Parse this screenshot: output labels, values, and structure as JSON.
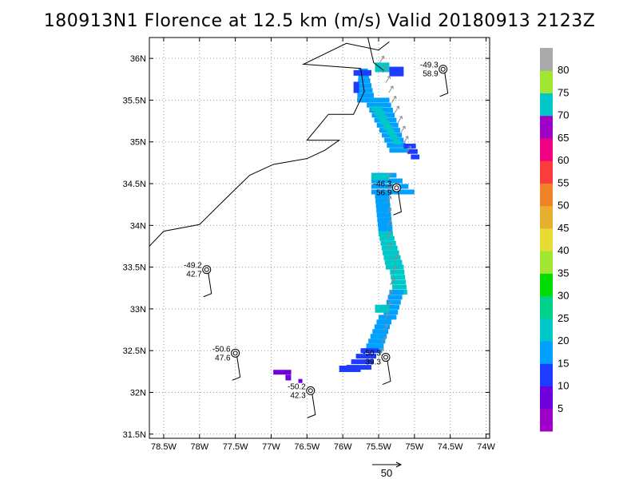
{
  "title": "180913N1 Florence at 12.5 km (m/s) Valid 20180913 2123Z",
  "chart_data": {
    "type": "heatmap",
    "title": "180913N1 Florence at 12.5 km (m/s) Valid 20180913 2123Z",
    "x_ticks": [
      "78.5W",
      "78W",
      "77.5W",
      "77W",
      "76.5W",
      "76W",
      "75.5W",
      "75W",
      "74.5W",
      "74W"
    ],
    "x_values": [
      -78.5,
      -78,
      -77.5,
      -77,
      -76.5,
      -76,
      -75.5,
      -75,
      -74.5,
      -74
    ],
    "y_ticks": [
      "31.5N",
      "32N",
      "32.5N",
      "33N",
      "33.5N",
      "34N",
      "34.5N",
      "35N",
      "35.5N",
      "36N"
    ],
    "y_values": [
      31.5,
      32,
      32.5,
      33,
      33.5,
      34,
      34.5,
      35,
      35.5,
      36
    ],
    "xlim": [
      -78.7,
      -73.95
    ],
    "ylim": [
      31.45,
      36.25
    ],
    "grid": true,
    "colorbar": {
      "labels": [
        "5",
        "10",
        "15",
        "20",
        "25",
        "30",
        "35",
        "40",
        "45",
        "50",
        "55",
        "60",
        "65",
        "70",
        "75",
        "80"
      ],
      "colors": [
        "#a000c8",
        "#6e00dc",
        "#1e3cff",
        "#00a0ff",
        "#00c8c8",
        "#00d28c",
        "#00dc00",
        "#a0e632",
        "#e6dc32",
        "#e6af2d",
        "#f08228",
        "#fa3c3c",
        "#f00082",
        "#a000c8",
        "#00c8c8",
        "#a0e632",
        "#aaaaaa"
      ]
    },
    "stations": [
      {
        "lon": -74.6,
        "lat": 35.87,
        "top": "-49.3",
        "bottom": "58.9"
      },
      {
        "lon": -75.25,
        "lat": 34.45,
        "top": "-46.3",
        "bottom": "56.9"
      },
      {
        "lon": -77.9,
        "lat": 33.47,
        "top": "-49.2",
        "bottom": "42.7"
      },
      {
        "lon": -77.5,
        "lat": 32.47,
        "top": "-50.6",
        "bottom": "47.6"
      },
      {
        "lon": -75.4,
        "lat": 32.42,
        "top": "-50.3",
        "bottom": "39.3"
      },
      {
        "lon": -76.45,
        "lat": 32.02,
        "top": "-50.2",
        "bottom": "42.3"
      }
    ],
    "reference_vector": {
      "label": "50",
      "value": 50
    }
  }
}
